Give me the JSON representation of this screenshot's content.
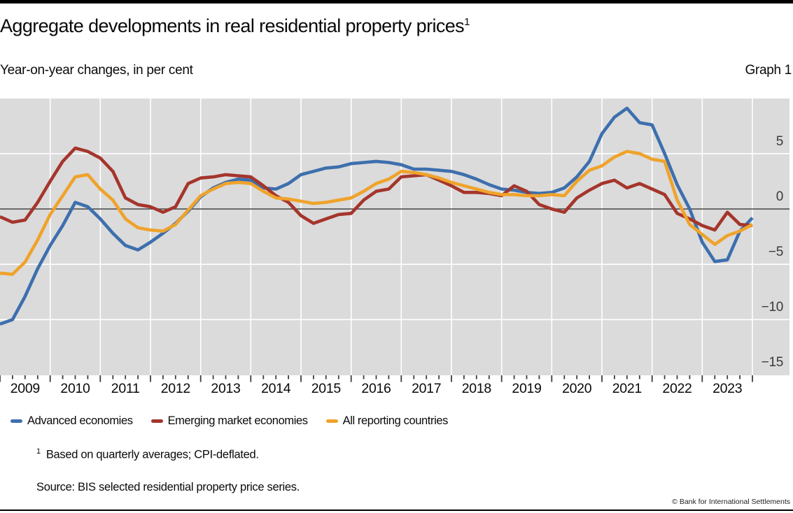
{
  "page": {
    "title": "Aggregate developments in real residential property prices",
    "title_footnote_marker": "1",
    "subtitle": "Year-on-year changes, in per cent",
    "graph_label": "Graph 1"
  },
  "chart_data": {
    "type": "line",
    "title": "Aggregate developments in real residential property prices",
    "subtitle": "Year-on-year changes, in per cent",
    "xlabel": "",
    "ylabel": "Year-on-year changes, in per cent",
    "ylim": [
      -15,
      10
    ],
    "ytick_values": [
      5,
      0,
      -5,
      -10,
      -15
    ],
    "ytick_labels": [
      "5",
      "0",
      "−5",
      "−10",
      "−15"
    ],
    "year_labels": [
      "2009",
      "2010",
      "2011",
      "2012",
      "2013",
      "2014",
      "2015",
      "2016",
      "2017",
      "2018",
      "2019",
      "2020",
      "2021",
      "2022",
      "2023"
    ],
    "grid": "white gridlines on grey panel, dark zero line",
    "legend_position": "below",
    "frequency": "quarterly",
    "x_quarters": [
      "2008-Q4",
      "2009-Q1",
      "2009-Q2",
      "2009-Q3",
      "2009-Q4",
      "2010-Q1",
      "2010-Q2",
      "2010-Q3",
      "2010-Q4",
      "2011-Q1",
      "2011-Q2",
      "2011-Q3",
      "2011-Q4",
      "2012-Q1",
      "2012-Q2",
      "2012-Q3",
      "2012-Q4",
      "2013-Q1",
      "2013-Q2",
      "2013-Q3",
      "2013-Q4",
      "2014-Q1",
      "2014-Q2",
      "2014-Q3",
      "2014-Q4",
      "2015-Q1",
      "2015-Q2",
      "2015-Q3",
      "2015-Q4",
      "2016-Q1",
      "2016-Q2",
      "2016-Q3",
      "2016-Q4",
      "2017-Q1",
      "2017-Q2",
      "2017-Q3",
      "2017-Q4",
      "2018-Q1",
      "2018-Q2",
      "2018-Q3",
      "2018-Q4",
      "2019-Q1",
      "2019-Q2",
      "2019-Q3",
      "2019-Q4",
      "2020-Q1",
      "2020-Q2",
      "2020-Q3",
      "2020-Q4",
      "2021-Q1",
      "2021-Q2",
      "2021-Q3",
      "2021-Q4",
      "2022-Q1",
      "2022-Q2",
      "2022-Q3",
      "2022-Q4",
      "2023-Q1",
      "2023-Q2",
      "2023-Q3",
      "2023-Q4"
    ],
    "series": [
      {
        "name": "Advanced economies",
        "color": "#3d6fad",
        "values": [
          -10.4,
          -10.0,
          -7.9,
          -5.4,
          -3.3,
          -1.5,
          0.6,
          0.2,
          -0.9,
          -2.2,
          -3.3,
          -3.7,
          -3.0,
          -2.2,
          -1.3,
          -0.2,
          1.1,
          1.9,
          2.4,
          2.7,
          2.6,
          1.9,
          1.8,
          2.3,
          3.1,
          3.4,
          3.7,
          3.8,
          4.1,
          4.2,
          4.3,
          4.2,
          4.0,
          3.6,
          3.6,
          3.5,
          3.4,
          3.1,
          2.7,
          2.2,
          1.8,
          1.7,
          1.5,
          1.4,
          1.5,
          1.9,
          2.9,
          4.3,
          6.8,
          8.3,
          9.1,
          7.8,
          7.6,
          5.0,
          2.2,
          0.0,
          -3.0,
          -4.75,
          -4.6,
          -2.0,
          -0.8
        ]
      },
      {
        "name": "Emerging market economies",
        "color": "#a5352c",
        "values": [
          -0.7,
          -1.2,
          -1.0,
          0.6,
          2.5,
          4.3,
          5.5,
          5.2,
          4.6,
          3.4,
          1.0,
          0.4,
          0.2,
          -0.3,
          0.2,
          2.3,
          2.8,
          2.9,
          3.1,
          3.0,
          2.9,
          2.1,
          1.2,
          0.6,
          -0.6,
          -1.3,
          -0.9,
          -0.5,
          -0.4,
          0.8,
          1.6,
          1.8,
          2.9,
          3.0,
          3.1,
          2.6,
          2.1,
          1.5,
          1.5,
          1.4,
          1.2,
          2.1,
          1.6,
          0.4,
          0.0,
          -0.3,
          1.0,
          1.7,
          2.3,
          2.6,
          1.9,
          2.3,
          1.8,
          1.3,
          -0.4,
          -0.9,
          -1.5,
          -1.9,
          -0.3,
          -1.4,
          -1.5
        ]
      },
      {
        "name": "All reporting countries",
        "color": "#efa32b",
        "values": [
          -5.8,
          -5.9,
          -4.8,
          -2.8,
          -0.5,
          1.2,
          2.9,
          3.1,
          1.8,
          0.8,
          -0.9,
          -1.7,
          -1.9,
          -2.0,
          -1.4,
          -0.1,
          1.2,
          1.8,
          2.3,
          2.4,
          2.3,
          1.6,
          1.0,
          0.9,
          0.7,
          0.5,
          0.6,
          0.8,
          1.0,
          1.6,
          2.3,
          2.7,
          3.4,
          3.3,
          3.1,
          2.8,
          2.4,
          2.1,
          1.8,
          1.5,
          1.3,
          1.3,
          1.2,
          1.2,
          1.3,
          1.2,
          2.5,
          3.5,
          3.9,
          4.7,
          5.2,
          5.0,
          4.5,
          4.3,
          0.8,
          -1.4,
          -2.3,
          -3.2,
          -2.4,
          -2.0,
          -1.4
        ]
      }
    ]
  },
  "footnote": {
    "marker": "1",
    "text": "Based on quarterly averages; CPI-deflated."
  },
  "source": "Source: BIS selected residential property price series.",
  "copyright": "© Bank for International Settlements",
  "colors": {
    "plot_background": "#dbdbdb",
    "gridline": "#ffffff",
    "zero_line": "#444444",
    "tick": "#3d3d3d",
    "top_bar": "#000000",
    "advanced_economies": "#3d6fad",
    "emerging_market_economies": "#a5352c",
    "all_reporting_countries": "#efa32b"
  }
}
